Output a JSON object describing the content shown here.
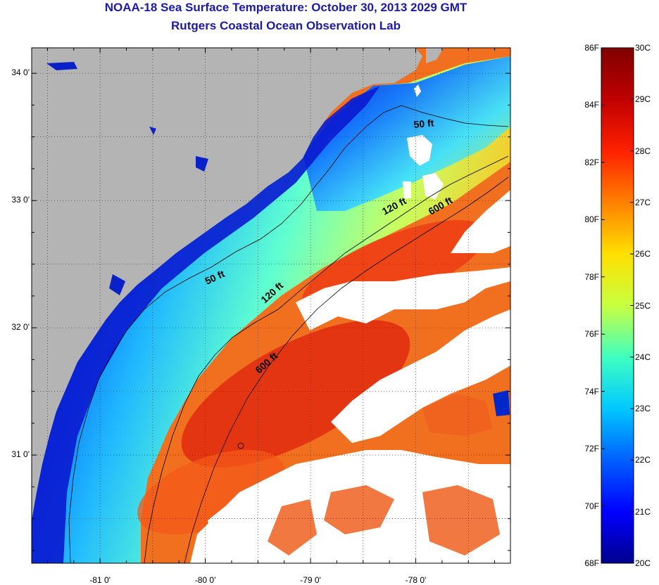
{
  "title": "NOAA-18 Sea Surface Temperature:  October 30, 2013 2029 GMT",
  "subtitle": "Rutgers Coastal Ocean Observation Lab",
  "map": {
    "lon_range": [
      -81.65,
      -77.1
    ],
    "lat_range": [
      30.15,
      34.2
    ],
    "lat_ticks": [
      {
        "value": 34,
        "label": "34 0'"
      },
      {
        "value": 33,
        "label": "33 0'"
      },
      {
        "value": 32,
        "label": "32 0'"
      },
      {
        "value": 31,
        "label": "31 0'"
      }
    ],
    "lon_ticks": [
      {
        "value": -81,
        "label": "-81 0'"
      },
      {
        "value": -80,
        "label": "-80 0'"
      },
      {
        "value": -79,
        "label": "-79 0'"
      },
      {
        "value": -78,
        "label": "-78 0'"
      }
    ],
    "gridlines": "dotted",
    "colors": {
      "land": "#b4b4b4",
      "cloud": "#ffffff",
      "frame": "#000000"
    },
    "contour_labels": [
      {
        "text": "50 ft",
        "near": "Cape Fear"
      },
      {
        "text": "120 ft",
        "near": "northeast shelf"
      },
      {
        "text": "600 ft",
        "near": "northeast shelf break"
      },
      {
        "text": "50 ft",
        "near": "South Carolina coast"
      },
      {
        "text": "120 ft",
        "near": "mid shelf"
      },
      {
        "text": "600 ft",
        "near": "south shelf break"
      }
    ]
  },
  "colorbar": {
    "range_c": [
      20,
      30
    ],
    "range_f": [
      68,
      86
    ],
    "fahrenheit_labels": [
      "86F",
      "84F",
      "82F",
      "80F",
      "78F",
      "76F",
      "74F",
      "72F",
      "70F",
      "68F"
    ],
    "celsius_labels": [
      "30C",
      "29C",
      "28C",
      "27C",
      "26C",
      "25C",
      "24C",
      "23C",
      "22C",
      "21C",
      "20C"
    ],
    "stops": [
      "#00008f",
      "#0000ff",
      "#0060ff",
      "#00c8ff",
      "#40ffc0",
      "#c8ff40",
      "#ffe000",
      "#ff8000",
      "#ff2000",
      "#c00000",
      "#800000"
    ]
  }
}
